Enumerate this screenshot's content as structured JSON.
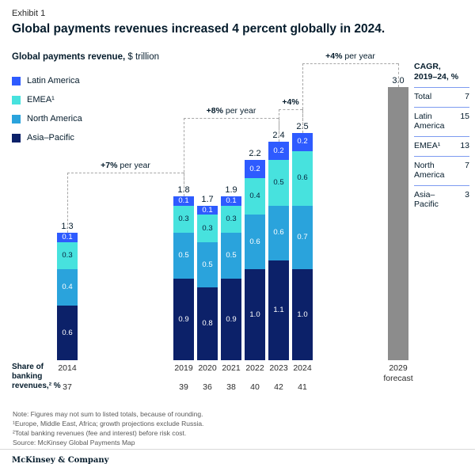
{
  "header": {
    "exhibit": "Exhibit 1",
    "title": "Global payments revenues increased 4 percent globally in 2024.",
    "subtitle_bold": "Global payments revenue,",
    "subtitle_unit": " $ trillion"
  },
  "legend": [
    {
      "label": "Latin America",
      "color": "#2e5bff"
    },
    {
      "label": "EMEA¹",
      "color": "#47e2de"
    },
    {
      "label": "North America",
      "color": "#2aa3dc"
    },
    {
      "label": "Asia–Pacific",
      "color": "#0c2169"
    }
  ],
  "chart_data": {
    "type": "bar",
    "subtype": "stacked-bar",
    "title": "Global payments revenue, $ trillion",
    "unit": "$ trillion",
    "categories": [
      "2014",
      "2019",
      "2020",
      "2021",
      "2022",
      "2023",
      "2024"
    ],
    "series": [
      {
        "name": "Asia–Pacific",
        "color": "#0c2169",
        "label_color": "#ffffff",
        "values": [
          0.6,
          0.9,
          0.8,
          0.9,
          1.0,
          1.1,
          1.0
        ]
      },
      {
        "name": "North America",
        "color": "#2aa3dc",
        "label_color": "#ffffff",
        "values": [
          0.4,
          0.5,
          0.5,
          0.5,
          0.6,
          0.6,
          0.7
        ]
      },
      {
        "name": "EMEA¹",
        "color": "#47e2de",
        "label_color": "#06213c",
        "values": [
          0.3,
          0.3,
          0.3,
          0.3,
          0.4,
          0.5,
          0.6
        ]
      },
      {
        "name": "Latin America",
        "color": "#2e5bff",
        "label_color": "#ffffff",
        "values": [
          0.1,
          0.1,
          0.1,
          0.1,
          0.2,
          0.2,
          0.2
        ]
      }
    ],
    "totals": [
      1.3,
      1.8,
      1.7,
      1.9,
      2.2,
      2.4,
      2.5
    ],
    "forecast": {
      "year": "2029",
      "axis_label": "2029 forecast",
      "value": 3.0,
      "color": "#8c8c8c"
    },
    "annotations": [
      {
        "pct": "+7%",
        "suffix": " per year",
        "from": "2014",
        "to": "2019"
      },
      {
        "pct": "+8%",
        "suffix": " per year",
        "from": "2019",
        "to": "2023"
      },
      {
        "pct": "+4%",
        "suffix": "",
        "from": "2023",
        "to": "2024"
      },
      {
        "pct": "+4%",
        "suffix": " per year",
        "from": "2024",
        "to": "2029"
      }
    ],
    "share_of_banking": {
      "label": "Share of banking revenues,² %",
      "values": [
        37,
        39,
        36,
        38,
        40,
        42,
        41
      ]
    },
    "legend_position": "top-left",
    "grid": false
  },
  "cagr": {
    "header": "CAGR, 2019–24, %",
    "rows": [
      {
        "label": "Total",
        "value": 7
      },
      {
        "label": "Latin America",
        "value": 15
      },
      {
        "label": "EMEA¹",
        "value": 13
      },
      {
        "label": "North America",
        "value": 7
      },
      {
        "label": "Asia– Pacific",
        "value": 3
      }
    ]
  },
  "footnotes": [
    "Note: Figures may not sum to listed totals, because of rounding.",
    "¹Europe, Middle East, Africa; growth projections exclude Russia.",
    "²Total banking revenues (fee and interest) before risk cost.",
    "Source: McKinsey Global Payments Map"
  ],
  "footer": {
    "brand": "McKinsey & Company"
  }
}
